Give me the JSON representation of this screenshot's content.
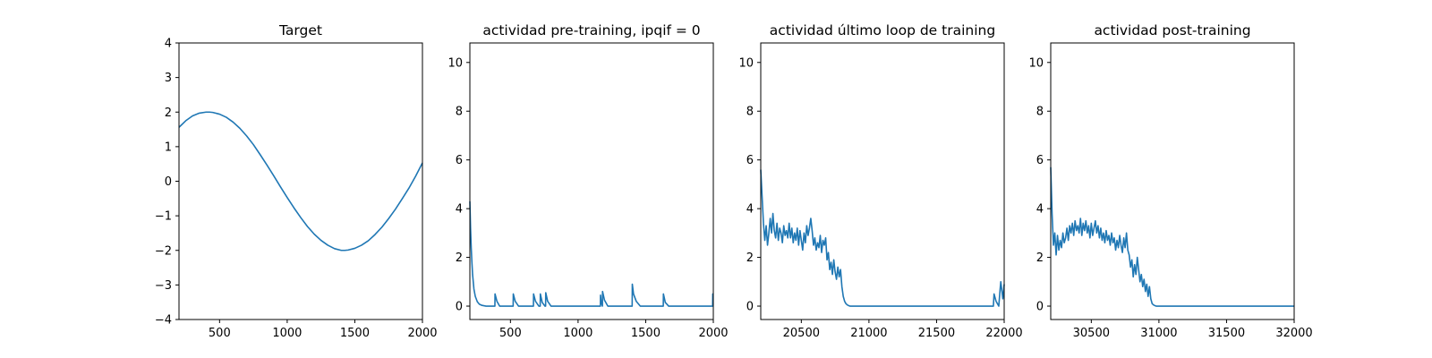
{
  "figure": {
    "background": "#ffffff",
    "line_color": "#1f77b4"
  },
  "chart_data": [
    {
      "type": "line",
      "title": "Target",
      "xlabel": "",
      "ylabel": "",
      "xlim": [
        200,
        2000
      ],
      "ylim": [
        -4,
        4
      ],
      "xticks": [
        500,
        1000,
        1500,
        2000
      ],
      "yticks": [
        -4,
        -3,
        -2,
        -1,
        0,
        1,
        2,
        3,
        4
      ],
      "grid": false,
      "series": [
        {
          "x": [
            200,
            250,
            300,
            350,
            400,
            425,
            450,
            500,
            550,
            600,
            650,
            700,
            750,
            800,
            850,
            900,
            950,
            1000,
            1050,
            1100,
            1150,
            1200,
            1250,
            1300,
            1350,
            1400,
            1425,
            1450,
            1500,
            1550,
            1600,
            1650,
            1700,
            1750,
            1800,
            1850,
            1900,
            1950,
            2000
          ],
          "y": [
            1.56,
            1.75,
            1.89,
            1.97,
            2.0,
            2.0,
            1.99,
            1.94,
            1.85,
            1.71,
            1.53,
            1.31,
            1.06,
            0.77,
            0.47,
            0.16,
            -0.16,
            -0.47,
            -0.77,
            -1.05,
            -1.31,
            -1.53,
            -1.71,
            -1.85,
            -1.95,
            -2.0,
            -2.0,
            -1.99,
            -1.94,
            -1.85,
            -1.72,
            -1.54,
            -1.33,
            -1.08,
            -0.81,
            -0.51,
            -0.2,
            0.15,
            0.53
          ]
        }
      ]
    },
    {
      "type": "line",
      "title": "actividad pre-training, ipqif = 0",
      "xlabel": "",
      "ylabel": "",
      "xlim": [
        200,
        2000
      ],
      "ylim": [
        -0.55,
        10.8
      ],
      "xticks": [
        500,
        1000,
        1500,
        2000
      ],
      "yticks": [
        0,
        2,
        4,
        6,
        8,
        10
      ],
      "grid": false,
      "series": [
        {
          "x": [
            200,
            205,
            210,
            215,
            220,
            230,
            240,
            255,
            270,
            290,
            320,
            385,
            386,
            400,
            420,
            520,
            521,
            535,
            560,
            670,
            671,
            685,
            710,
            720,
            721,
            735,
            755,
            760,
            761,
            775,
            800,
            1165,
            1166,
            1170,
            1180,
            1181,
            1195,
            1220,
            1400,
            1401,
            1410,
            1430,
            1460,
            1630,
            1631,
            1645,
            1670,
            1995,
            1996,
            2000
          ],
          "y": [
            4.3,
            3.2,
            2.4,
            1.8,
            1.3,
            0.7,
            0.4,
            0.18,
            0.08,
            0.03,
            0.0,
            0.0,
            0.5,
            0.2,
            0.0,
            0.0,
            0.5,
            0.2,
            0.0,
            0.0,
            0.5,
            0.2,
            0.0,
            0.0,
            0.5,
            0.15,
            0.0,
            0.0,
            0.55,
            0.2,
            0.0,
            0.0,
            0.45,
            0.2,
            0.0,
            0.6,
            0.25,
            0.0,
            0.0,
            0.9,
            0.5,
            0.2,
            0.0,
            0.0,
            0.5,
            0.15,
            0.0,
            0.0,
            0.5,
            0.5
          ]
        }
      ]
    },
    {
      "type": "line",
      "title": "actividad último loop de training",
      "xlabel": "",
      "ylabel": "",
      "xlim": [
        20200,
        22000
      ],
      "ylim": [
        -0.55,
        10.8
      ],
      "xticks": [
        20500,
        21000,
        21500,
        22000
      ],
      "yticks": [
        0,
        2,
        4,
        6,
        8,
        10
      ],
      "grid": false,
      "series": [
        {
          "x": [
            20200,
            20210,
            20220,
            20230,
            20240,
            20250,
            20260,
            20270,
            20280,
            20290,
            20300,
            20310,
            20320,
            20330,
            20340,
            20350,
            20360,
            20370,
            20380,
            20390,
            20400,
            20410,
            20420,
            20430,
            20440,
            20450,
            20460,
            20470,
            20480,
            20490,
            20500,
            20510,
            20520,
            20530,
            20540,
            20550,
            20560,
            20570,
            20580,
            20590,
            20600,
            20610,
            20620,
            20630,
            20640,
            20650,
            20660,
            20670,
            20680,
            20690,
            20700,
            20710,
            20720,
            20730,
            20740,
            20750,
            20760,
            20770,
            20780,
            20790,
            20800,
            20810,
            20820,
            20830,
            20840,
            20850,
            20860,
            20870,
            20880,
            20900,
            20950,
            21900,
            21920,
            21925,
            21940,
            21960,
            21970,
            21975,
            21990,
            22000
          ],
          "y": [
            5.6,
            4.5,
            3.4,
            2.7,
            3.3,
            2.5,
            3.0,
            3.6,
            3.0,
            3.8,
            3.1,
            2.8,
            3.4,
            2.7,
            3.2,
            3.0,
            2.6,
            3.3,
            2.9,
            3.1,
            2.8,
            3.4,
            2.8,
            3.2,
            2.6,
            3.0,
            2.7,
            3.2,
            2.5,
            3.1,
            2.7,
            2.3,
            3.0,
            2.6,
            3.3,
            2.9,
            3.2,
            3.6,
            3.1,
            2.5,
            2.8,
            2.3,
            2.6,
            2.4,
            2.9,
            2.2,
            2.7,
            2.5,
            2.8,
            1.9,
            2.2,
            1.5,
            1.8,
            1.3,
            1.9,
            1.4,
            1.1,
            1.6,
            1.2,
            1.5,
            0.8,
            0.4,
            0.2,
            0.1,
            0.05,
            0.02,
            0.0,
            0.0,
            0.0,
            0.0,
            0.0,
            0.0,
            0.0,
            0.5,
            0.2,
            0.0,
            0.7,
            1.0,
            0.3,
            0.9
          ]
        }
      ]
    },
    {
      "type": "line",
      "title": "actividad post-training",
      "xlabel": "",
      "ylabel": "",
      "xlim": [
        30200,
        32000
      ],
      "ylim": [
        -0.55,
        10.8
      ],
      "xticks": [
        30500,
        31000,
        31500,
        32000
      ],
      "yticks": [
        0,
        2,
        4,
        6,
        8,
        10
      ],
      "grid": false,
      "series": [
        {
          "x": [
            30200,
            30210,
            30220,
            30230,
            30240,
            30250,
            30260,
            30270,
            30280,
            30290,
            30300,
            30310,
            30320,
            30330,
            30340,
            30350,
            30360,
            30370,
            30380,
            30390,
            30400,
            30410,
            30420,
            30430,
            30440,
            30450,
            30460,
            30470,
            30480,
            30490,
            30500,
            30510,
            30520,
            30530,
            30540,
            30550,
            30560,
            30570,
            30580,
            30590,
            30600,
            30610,
            30620,
            30630,
            30640,
            30650,
            30660,
            30670,
            30680,
            30690,
            30700,
            30710,
            30720,
            30730,
            30740,
            30750,
            30760,
            30770,
            30780,
            30790,
            30800,
            30810,
            30820,
            30830,
            30840,
            30850,
            30860,
            30870,
            30880,
            30890,
            30900,
            30910,
            30920,
            30930,
            30940,
            30950,
            30960,
            30970,
            30980,
            30990,
            31000,
            31020,
            31100,
            32000
          ],
          "y": [
            5.7,
            3.8,
            2.5,
            3.0,
            2.1,
            2.9,
            2.3,
            2.7,
            2.4,
            3.0,
            2.6,
            2.8,
            3.2,
            2.7,
            3.3,
            3.0,
            3.4,
            2.9,
            3.5,
            3.1,
            3.3,
            3.0,
            3.6,
            2.9,
            3.4,
            3.1,
            3.5,
            3.0,
            3.3,
            2.8,
            3.4,
            2.9,
            3.2,
            3.5,
            3.0,
            3.3,
            2.8,
            3.2,
            2.7,
            3.0,
            2.6,
            3.1,
            2.7,
            2.9,
            2.5,
            3.0,
            2.6,
            2.8,
            2.3,
            2.7,
            2.4,
            2.9,
            2.5,
            2.2,
            2.8,
            2.4,
            3.0,
            2.3,
            2.1,
            1.6,
            1.9,
            1.2,
            1.7,
            1.3,
            2.0,
            1.5,
            1.0,
            1.3,
            0.8,
            1.1,
            0.6,
            0.9,
            0.4,
            0.8,
            0.3,
            0.1,
            0.05,
            0.02,
            0.0,
            0.0,
            0.0,
            0.0,
            0.0,
            0.0
          ]
        }
      ]
    }
  ]
}
